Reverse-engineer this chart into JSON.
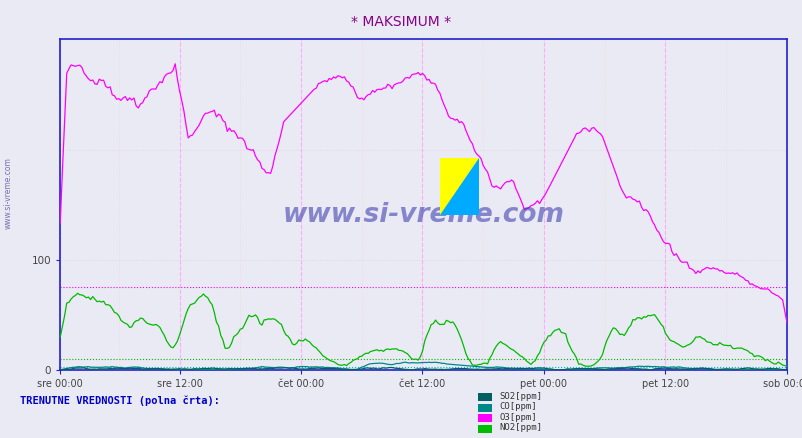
{
  "title": "* MAKSIMUM *",
  "title_color": "#880088",
  "bg_color": "#eaeaf4",
  "plot_bg_color": "#eaeaf4",
  "xlabel_ticks": [
    "sre 00:00",
    "sre 12:00",
    "čet 00:00",
    "čet 12:00",
    "pet 00:00",
    "pet 12:00",
    "sob 00:00"
  ],
  "ylim": [
    0,
    300
  ],
  "ytick_val": 100,
  "grid_color": "#ccccdd",
  "hline_O3_color": "#ff00ff",
  "hline_O3_val": 75,
  "hline_NO2_color": "#00bb00",
  "hline_NO2_val": 10,
  "hline_CO_color": "#00bbbb",
  "hline_CO_val": 3,
  "vline_color": "#ffaaff",
  "watermark": "www.si-vreme.com",
  "watermark_color": "#3333aa",
  "side_text": "www.si-vreme.com",
  "legend_label": "TRENUTNE VREDNOSTI (polna črta):",
  "SO2_color": "#006060",
  "CO_color": "#008888",
  "O3_color": "#ff00ff",
  "NO2_color": "#00bb00",
  "axis_color": "#2222cc",
  "tick_color": "#444444",
  "n_points": 336,
  "random_seed": 42
}
